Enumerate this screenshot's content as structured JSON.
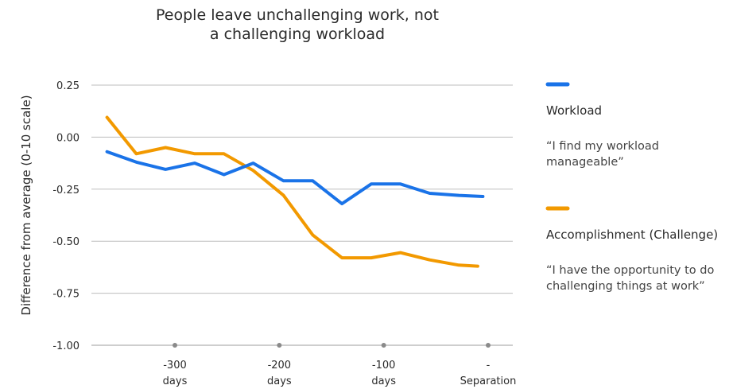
{
  "chart_data": {
    "type": "line",
    "title_lines": [
      "People leave unchallenging work, not",
      "a challenging workload"
    ],
    "ylabel": "Difference from average (0-10 scale)",
    "ylim": [
      -1.0,
      0.25
    ],
    "yticks": [
      0.25,
      0.0,
      -0.25,
      -0.5,
      -0.75,
      -1.0
    ],
    "ytick_labels": [
      "0.25",
      "0.00",
      "-0.25",
      "-0.50",
      "-0.75",
      "-1.00"
    ],
    "xlim": [
      -360,
      0
    ],
    "xticks": [
      {
        "x": -300,
        "lines": [
          "-300",
          "days"
        ]
      },
      {
        "x": -200,
        "lines": [
          "-200",
          "days"
        ]
      },
      {
        "x": -100,
        "lines": [
          "-100",
          "days"
        ]
      },
      {
        "x": 0,
        "lines": [
          "-",
          "Separation"
        ]
      }
    ],
    "grid": true,
    "legend_position": "right",
    "series": [
      {
        "name": "Workload",
        "quote_lines": [
          "“I find my workload",
          "manageable”"
        ],
        "color": "#1a73e8",
        "points": [
          [
            -365,
            -0.07
          ],
          [
            -337,
            -0.12
          ],
          [
            -309,
            -0.155
          ],
          [
            -281,
            -0.125
          ],
          [
            -253,
            -0.18
          ],
          [
            -225,
            -0.125
          ],
          [
            -196,
            -0.21
          ],
          [
            -168,
            -0.21
          ],
          [
            -140,
            -0.32
          ],
          [
            -112,
            -0.225
          ],
          [
            -84,
            -0.225
          ],
          [
            -56,
            -0.27
          ],
          [
            -28,
            -0.28
          ],
          [
            -5,
            -0.285
          ]
        ]
      },
      {
        "name": "Accomplishment (Challenge)",
        "quote_lines": [
          "“I have the opportunity to do",
          "challenging things at work”"
        ],
        "color": "#f29900",
        "points": [
          [
            -365,
            0.095
          ],
          [
            -337,
            -0.08
          ],
          [
            -309,
            -0.05
          ],
          [
            -281,
            -0.08
          ],
          [
            -253,
            -0.08
          ],
          [
            -225,
            -0.16
          ],
          [
            -196,
            -0.28
          ],
          [
            -168,
            -0.47
          ],
          [
            -140,
            -0.58
          ],
          [
            -112,
            -0.58
          ],
          [
            -84,
            -0.555
          ],
          [
            -56,
            -0.59
          ],
          [
            -28,
            -0.615
          ],
          [
            -10,
            -0.62
          ]
        ]
      }
    ]
  }
}
